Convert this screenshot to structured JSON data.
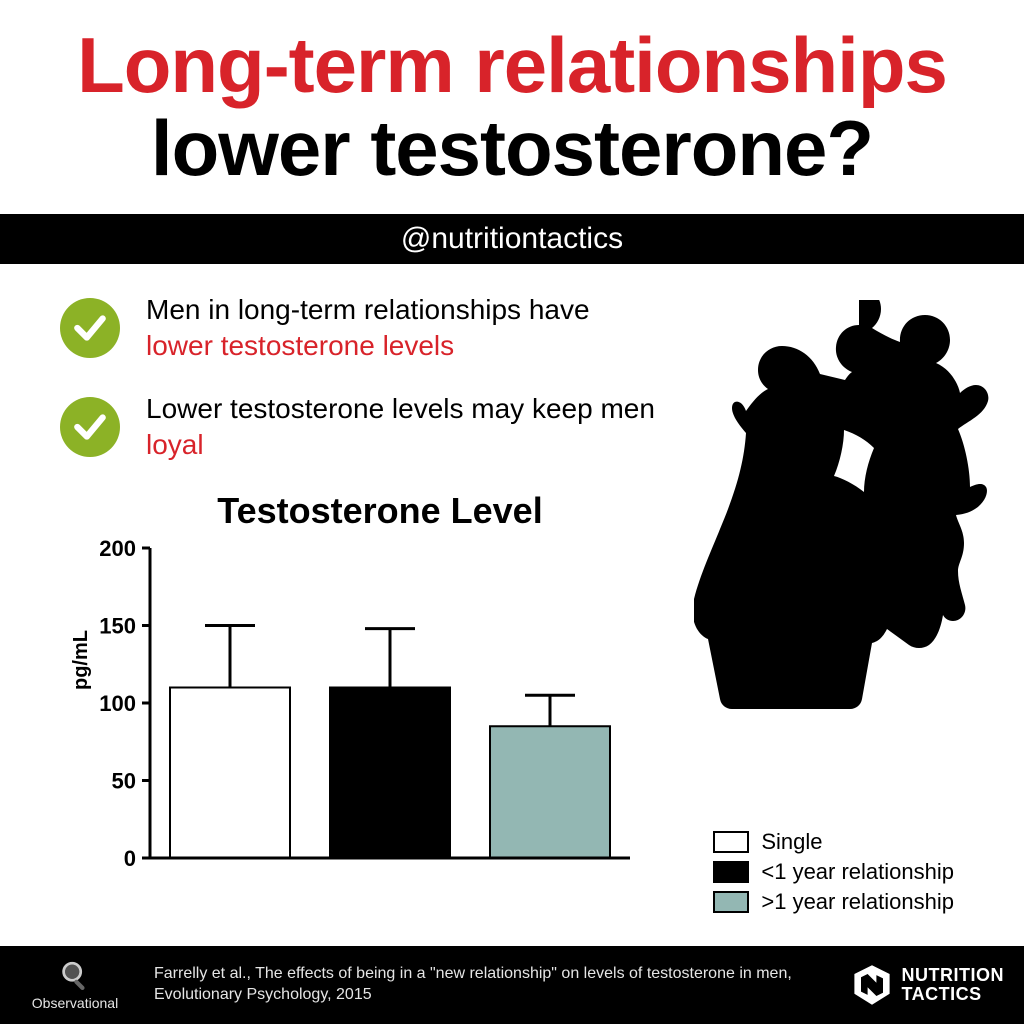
{
  "title": {
    "line1": "Long-term relationships",
    "line1_color": "#d8232a",
    "line2": "lower testosterone?",
    "line2_color": "#000000",
    "fontsize": 78,
    "fontweight": 700
  },
  "handle": {
    "text": "@nutritiontactics",
    "bg": "#000000",
    "color": "#ffffff",
    "fontsize": 30
  },
  "bullets": [
    {
      "pre": "Men in long-term relationships have ",
      "hl": "lower testosterone levels",
      "post": "",
      "hl_color": "#d8232a",
      "check_bg": "#8cb226",
      "check_stroke": "#ffffff"
    },
    {
      "pre": "Lower testosterone levels may keep men ",
      "hl": "loyal",
      "post": "",
      "hl_color": "#d8232a",
      "check_bg": "#8cb226",
      "check_stroke": "#ffffff"
    }
  ],
  "chart": {
    "type": "bar",
    "title": "Testosterone Level",
    "title_fontsize": 36,
    "ylabel": "pg/mL",
    "ylabel_fontsize": 20,
    "ylim": [
      0,
      200
    ],
    "ytick_step": 50,
    "yticks": [
      0,
      50,
      100,
      150,
      200
    ],
    "categories": [
      "Single",
      "<1 year relationship",
      ">1 year relationship"
    ],
    "values": [
      110,
      110,
      85
    ],
    "error_upper": [
      40,
      38,
      20
    ],
    "bar_colors": [
      "#ffffff",
      "#000000",
      "#93b7b3"
    ],
    "bar_border": "#000000",
    "bar_border_width": 2,
    "axis_color": "#000000",
    "axis_width": 3,
    "tick_fontsize": 22,
    "bar_width_ratio": 0.75,
    "error_cap_width": 50,
    "error_stroke_width": 3,
    "background_color": "#ffffff"
  },
  "legend": {
    "items": [
      {
        "label": "Single",
        "fill": "#ffffff",
        "border": "#000000"
      },
      {
        "label": "<1 year relationship",
        "fill": "#000000",
        "border": "#000000"
      },
      {
        "label": ">1 year relationship",
        "fill": "#93b7b3",
        "border": "#000000"
      }
    ],
    "fontsize": 22
  },
  "couple_silhouette_color": "#000000",
  "footer": {
    "bg": "#000000",
    "color": "#e5e5e5",
    "observational_label": "Observational",
    "observational_fontsize": 14,
    "citation": "Farrelly et al., The effects of being in a \"new relationship\" on levels of testosterone in men, Evolutionary Psychology, 2015",
    "citation_fontsize": 16,
    "brand_line1": "NUTRITION",
    "brand_line2": "TACTICS",
    "brand_fontsize": 18
  }
}
